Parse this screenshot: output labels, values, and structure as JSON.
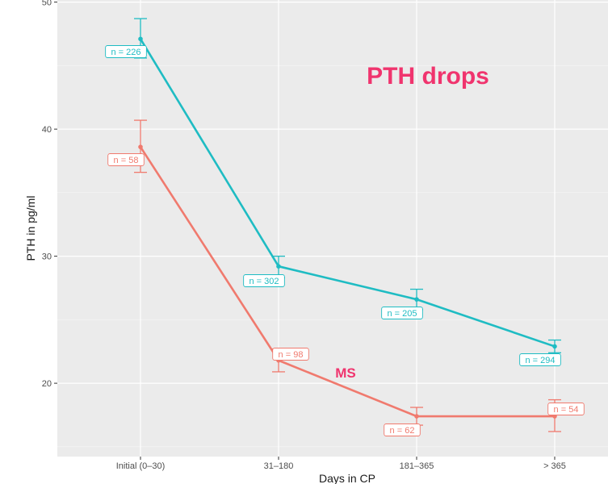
{
  "chart_data": {
    "type": "line",
    "title": "",
    "xlabel": "Days in CP",
    "ylabel": "PTH in pg/ml",
    "categories": [
      "Initial (0–30)",
      "31–180",
      "181–365",
      "> 365"
    ],
    "ylim": [
      14.5,
      50
    ],
    "yticks": [
      20,
      30,
      40,
      50
    ],
    "grid": true,
    "colors": {
      "panel": "#ebebeb",
      "grid": "#ffffff",
      "anno": "#f0346e"
    },
    "series": [
      {
        "name": "cyan",
        "color": "#1fbcc3",
        "values": [
          47.1,
          29.2,
          26.6,
          22.9
        ],
        "error_low": [
          45.6,
          28.3,
          25.8,
          22.4
        ],
        "error_high": [
          48.7,
          30.0,
          27.4,
          23.4
        ],
        "n_labels": [
          "n = 226",
          "n = 302",
          "n = 205",
          "n = 294"
        ]
      },
      {
        "name": "MS",
        "color": "#f07a6e",
        "values": [
          38.6,
          21.8,
          17.4,
          17.4
        ],
        "error_low": [
          36.6,
          20.9,
          16.7,
          16.2
        ],
        "error_high": [
          40.7,
          22.7,
          18.1,
          18.7
        ],
        "n_labels": [
          "n = 58",
          "n = 98",
          "n = 62",
          "n = 54"
        ]
      }
    ],
    "annotations": [
      {
        "text": "PTH drops"
      },
      {
        "text": "MS"
      }
    ]
  }
}
